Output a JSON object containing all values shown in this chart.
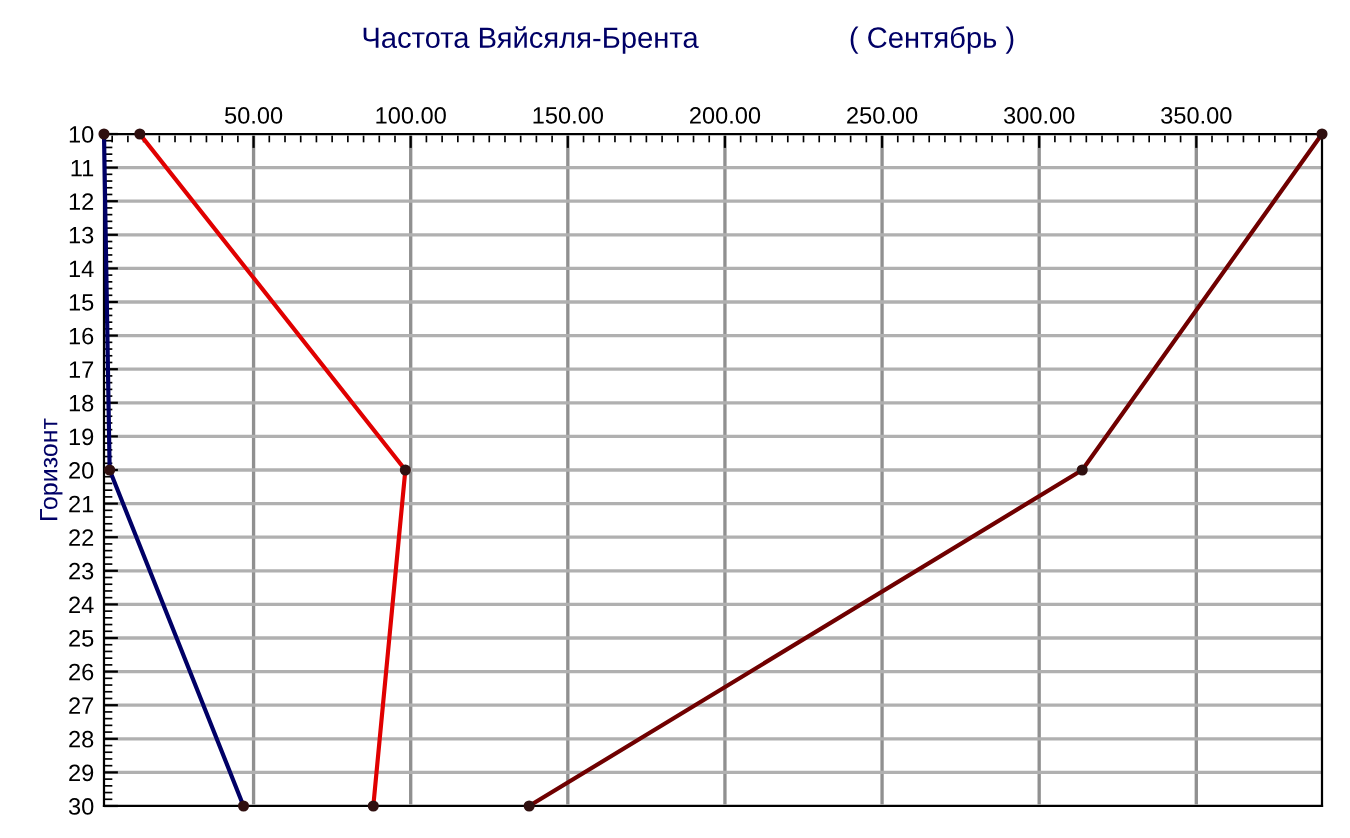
{
  "chart_data": {
    "type": "line",
    "title": "Частота Вяйсяля-Брента",
    "subtitle": "( Сентябрь )",
    "ylabel": "Горизонт",
    "series": [
      {
        "x": [
          2.4,
          4.2,
          46.8
        ],
        "values": [
          10,
          20,
          30
        ],
        "color": "#000066"
      },
      {
        "x": [
          13.8,
          98.3,
          88.1
        ],
        "values": [
          10,
          20,
          30
        ],
        "color": "#e00000"
      },
      {
        "x": [
          390,
          313.7,
          137.7
        ],
        "values": [
          10,
          20,
          30
        ],
        "color": "#700000"
      }
    ],
    "xlim": [
      2.4,
      390
    ],
    "xticks": [
      {
        "value": 50,
        "label": "50.00"
      },
      {
        "value": 100,
        "label": "100.00"
      },
      {
        "value": 150,
        "label": "150.00"
      },
      {
        "value": 200,
        "label": "200.00"
      },
      {
        "value": 250,
        "label": "250.00"
      },
      {
        "value": 300,
        "label": "300.00"
      },
      {
        "value": 350,
        "label": "350.00"
      }
    ],
    "ylim": [
      30,
      10
    ],
    "yticks": [
      10,
      11,
      12,
      13,
      14,
      15,
      16,
      17,
      18,
      19,
      20,
      21,
      22,
      23,
      24,
      25,
      26,
      27,
      28,
      29,
      30
    ],
    "grid": true,
    "marker": "circle",
    "line_style": "solid"
  }
}
